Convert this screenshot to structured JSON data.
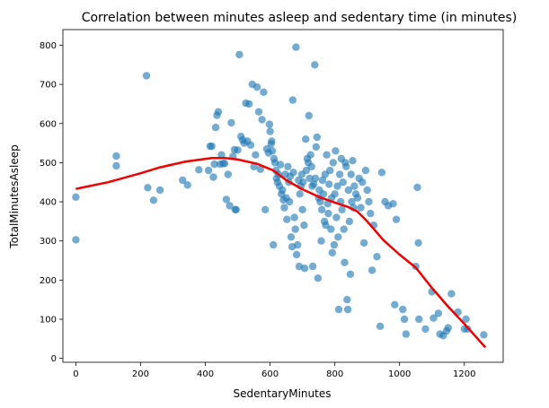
{
  "chart_data": {
    "type": "scatter",
    "title": "Correlation between minutes asleep and sedentary time (in minutes)",
    "xlabel": "SedentaryMinutes",
    "ylabel": "TotalMinutesAsleep",
    "xlim": [
      -40,
      1320
    ],
    "ylim": [
      -10,
      840
    ],
    "xticks": [
      0,
      200,
      400,
      600,
      800,
      1000,
      1200
    ],
    "yticks": [
      0,
      100,
      200,
      300,
      400,
      500,
      600,
      700,
      800
    ],
    "grid": false,
    "colors": {
      "points": "#1f77b4",
      "trend": "#ee0000",
      "axes": "#000000"
    },
    "series": [
      {
        "type": "scatter",
        "points": [
          [
            0,
            412
          ],
          [
            0,
            303
          ],
          [
            125,
            517
          ],
          [
            125,
            492
          ],
          [
            218,
            722
          ],
          [
            222,
            436
          ],
          [
            240,
            404
          ],
          [
            260,
            430
          ],
          [
            330,
            455
          ],
          [
            345,
            443
          ],
          [
            380,
            482
          ],
          [
            410,
            480
          ],
          [
            415,
            542
          ],
          [
            420,
            542
          ],
          [
            425,
            463
          ],
          [
            428,
            496
          ],
          [
            432,
            590
          ],
          [
            436,
            621
          ],
          [
            440,
            630
          ],
          [
            446,
            496
          ],
          [
            450,
            520
          ],
          [
            455,
            498
          ],
          [
            460,
            498
          ],
          [
            465,
            406
          ],
          [
            470,
            470
          ],
          [
            475,
            390
          ],
          [
            480,
            602
          ],
          [
            485,
            516
          ],
          [
            490,
            533
          ],
          [
            492,
            380
          ],
          [
            495,
            380
          ],
          [
            500,
            532
          ],
          [
            505,
            776
          ],
          [
            510,
            567
          ],
          [
            515,
            558
          ],
          [
            520,
            550
          ],
          [
            525,
            652
          ],
          [
            530,
            555
          ],
          [
            535,
            650
          ],
          [
            540,
            545
          ],
          [
            545,
            700
          ],
          [
            550,
            490
          ],
          [
            555,
            520
          ],
          [
            560,
            693
          ],
          [
            565,
            630
          ],
          [
            570,
            483
          ],
          [
            575,
            610
          ],
          [
            580,
            680
          ],
          [
            585,
            380
          ],
          [
            590,
            535
          ],
          [
            595,
            525
          ],
          [
            598,
            598
          ],
          [
            600,
            580
          ],
          [
            603,
            548
          ],
          [
            605,
            555
          ],
          [
            607,
            530
          ],
          [
            610,
            290
          ],
          [
            612,
            510
          ],
          [
            615,
            500
          ],
          [
            618,
            480
          ],
          [
            620,
            460
          ],
          [
            623,
            450
          ],
          [
            626,
            470
          ],
          [
            629,
            440
          ],
          [
            632,
            495
          ],
          [
            635,
            420
          ],
          [
            638,
            430
          ],
          [
            641,
            405
          ],
          [
            644,
            385
          ],
          [
            647,
            470
          ],
          [
            650,
            410
          ],
          [
            652,
            355
          ],
          [
            655,
            490
          ],
          [
            658,
            450
          ],
          [
            660,
            400
          ],
          [
            662,
            465
          ],
          [
            665,
            310
          ],
          [
            668,
            285
          ],
          [
            670,
            660
          ],
          [
            672,
            475
          ],
          [
            675,
            360
          ],
          [
            678,
            330
          ],
          [
            680,
            795
          ],
          [
            682,
            265
          ],
          [
            685,
            290
          ],
          [
            688,
            455
          ],
          [
            690,
            235
          ],
          [
            692,
            420
          ],
          [
            695,
            440
          ],
          [
            698,
            470
          ],
          [
            700,
            380
          ],
          [
            702,
            450
          ],
          [
            705,
            340
          ],
          [
            707,
            230
          ],
          [
            710,
            560
          ],
          [
            712,
            480
          ],
          [
            715,
            510
          ],
          [
            718,
            500
          ],
          [
            720,
            620
          ],
          [
            722,
            460
          ],
          [
            725,
            520
          ],
          [
            728,
            490
          ],
          [
            730,
            440
          ],
          [
            732,
            235
          ],
          [
            735,
            445
          ],
          [
            738,
            750
          ],
          [
            740,
            460
          ],
          [
            742,
            540
          ],
          [
            745,
            565
          ],
          [
            748,
            205
          ],
          [
            750,
            410
          ],
          [
            752,
            430
          ],
          [
            755,
            400
          ],
          [
            758,
            300
          ],
          [
            760,
            380
          ],
          [
            762,
            455
          ],
          [
            765,
            420
          ],
          [
            768,
            350
          ],
          [
            770,
            470
          ],
          [
            772,
            340
          ],
          [
            775,
            520
          ],
          [
            778,
            395
          ],
          [
            780,
            370
          ],
          [
            782,
            445
          ],
          [
            785,
            480
          ],
          [
            788,
            330
          ],
          [
            790,
            410
          ],
          [
            792,
            270
          ],
          [
            795,
            500
          ],
          [
            798,
            290
          ],
          [
            800,
            420
          ],
          [
            802,
            530
          ],
          [
            805,
            360
          ],
          [
            808,
            440
          ],
          [
            810,
            310
          ],
          [
            812,
            125
          ],
          [
            815,
            470
          ],
          [
            818,
            400
          ],
          [
            820,
            510
          ],
          [
            822,
            380
          ],
          [
            825,
            450
          ],
          [
            828,
            330
          ],
          [
            830,
            245
          ],
          [
            832,
            500
          ],
          [
            835,
            490
          ],
          [
            838,
            150
          ],
          [
            840,
            125
          ],
          [
            842,
            430
          ],
          [
            845,
            350
          ],
          [
            848,
            215
          ],
          [
            850,
            470
          ],
          [
            852,
            400
          ],
          [
            855,
            505
          ],
          [
            858,
            385
          ],
          [
            860,
            440
          ],
          [
            865,
            420
          ],
          [
            870,
            410
          ],
          [
            875,
            460
          ],
          [
            880,
            385
          ],
          [
            885,
            450
          ],
          [
            890,
            295
          ],
          [
            895,
            480
          ],
          [
            900,
            430
          ],
          [
            905,
            400
          ],
          [
            910,
            370
          ],
          [
            915,
            225
          ],
          [
            920,
            340
          ],
          [
            930,
            260
          ],
          [
            940,
            82
          ],
          [
            945,
            475
          ],
          [
            955,
            400
          ],
          [
            965,
            390
          ],
          [
            980,
            395
          ],
          [
            985,
            137
          ],
          [
            990,
            355
          ],
          [
            1010,
            125
          ],
          [
            1015,
            100
          ],
          [
            1020,
            62
          ],
          [
            1050,
            235
          ],
          [
            1055,
            437
          ],
          [
            1058,
            295
          ],
          [
            1060,
            100
          ],
          [
            1080,
            75
          ],
          [
            1100,
            170
          ],
          [
            1105,
            103
          ],
          [
            1120,
            115
          ],
          [
            1125,
            62
          ],
          [
            1135,
            58
          ],
          [
            1145,
            70
          ],
          [
            1150,
            78
          ],
          [
            1160,
            165
          ],
          [
            1180,
            118
          ],
          [
            1200,
            75
          ],
          [
            1205,
            100
          ],
          [
            1210,
            75
          ],
          [
            1260,
            60
          ]
        ]
      },
      {
        "type": "line",
        "points": [
          [
            0,
            433
          ],
          [
            100,
            450
          ],
          [
            200,
            473
          ],
          [
            260,
            488
          ],
          [
            340,
            503
          ],
          [
            420,
            512
          ],
          [
            460,
            512
          ],
          [
            500,
            508
          ],
          [
            560,
            497
          ],
          [
            610,
            480
          ],
          [
            650,
            455
          ],
          [
            700,
            432
          ],
          [
            750,
            413
          ],
          [
            800,
            398
          ],
          [
            840,
            387
          ],
          [
            870,
            375
          ],
          [
            900,
            350
          ],
          [
            950,
            302
          ],
          [
            1000,
            265
          ],
          [
            1050,
            232
          ],
          [
            1100,
            180
          ],
          [
            1150,
            132
          ],
          [
            1200,
            88
          ],
          [
            1265,
            28
          ]
        ]
      }
    ]
  }
}
